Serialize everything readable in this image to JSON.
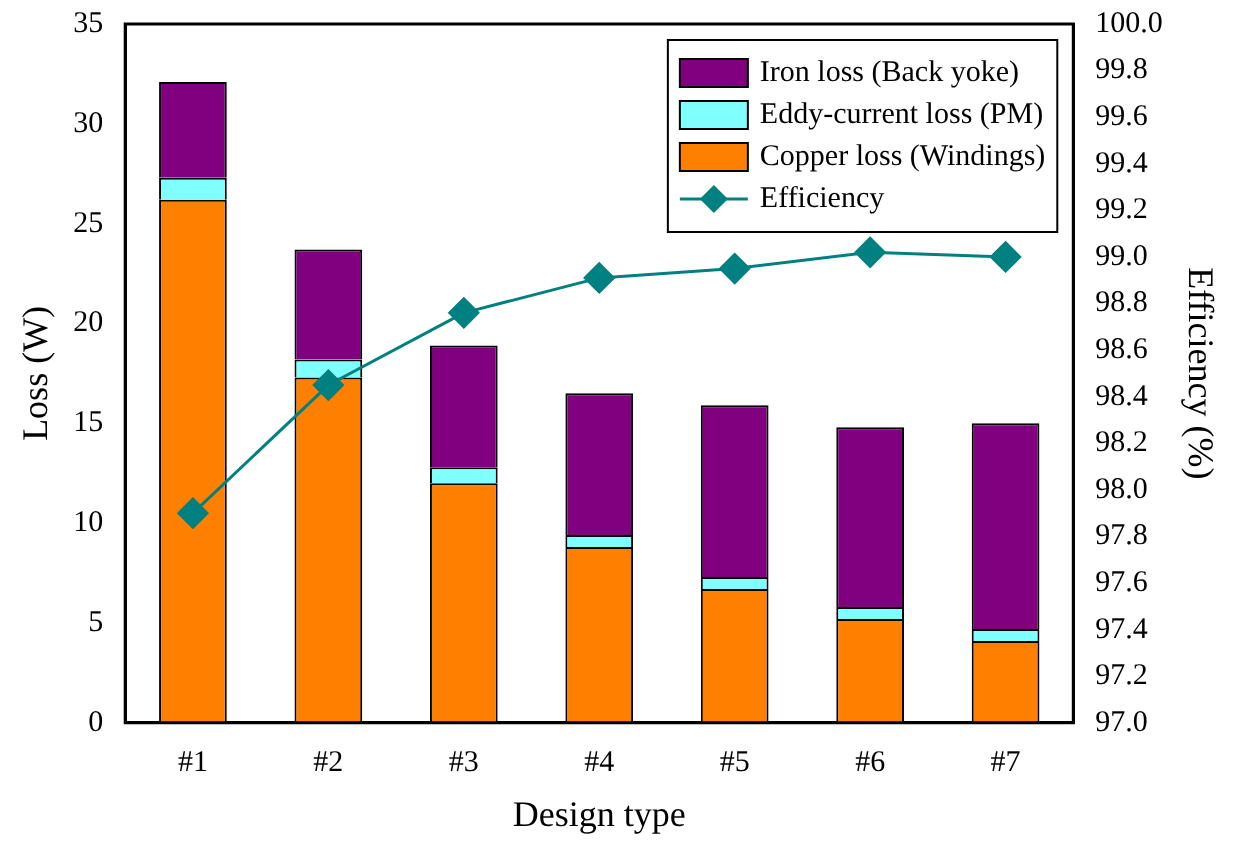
{
  "chart_data": {
    "type": "bar",
    "xlabel": "Design type",
    "ylabel": "Loss (W)",
    "y2label": "Efficiency (%)",
    "categories": [
      "#1",
      "#2",
      "#3",
      "#4",
      "#5",
      "#6",
      "#7"
    ],
    "stacked": true,
    "series": [
      {
        "name": "Copper loss (Windings)",
        "color": "#ff8000",
        "values": [
          26.2,
          17.3,
          12.0,
          8.8,
          6.7,
          5.2,
          4.1
        ]
      },
      {
        "name": "Eddy-current loss (PM)",
        "color": "#80ffff",
        "values": [
          1.1,
          0.9,
          0.8,
          0.6,
          0.6,
          0.6,
          0.6
        ]
      },
      {
        "name": "Iron loss (Back yoke)",
        "color": "#800080",
        "values": [
          4.8,
          5.5,
          6.1,
          7.1,
          8.6,
          9.0,
          10.3
        ]
      },
      {
        "name": "Efficiency",
        "type": "line",
        "axis": "y2",
        "color": "#008080",
        "marker": "diamond",
        "values": [
          97.9,
          98.45,
          98.76,
          98.91,
          98.95,
          99.02,
          99.0
        ]
      }
    ],
    "ylim": [
      0,
      35
    ],
    "yticks": [
      0,
      5,
      10,
      15,
      20,
      25,
      30,
      35
    ],
    "y2lim": [
      97,
      100
    ],
    "y2ticks": [
      {
        "value": 97,
        "label": "97.0"
      },
      {
        "value": 97.2,
        "label": "97.2"
      },
      {
        "value": 97.4,
        "label": "97.4"
      },
      {
        "value": 97.6,
        "label": "97.6"
      },
      {
        "value": 97.8,
        "label": "97.8"
      },
      {
        "value": 98,
        "label": "98.0"
      },
      {
        "value": 98.2,
        "label": "98.2"
      },
      {
        "value": 98.4,
        "label": "98.4"
      },
      {
        "value": 98.6,
        "label": "98.6"
      },
      {
        "value": 98.8,
        "label": "98.8"
      },
      {
        "value": 99,
        "label": "99.0"
      },
      {
        "value": 99.2,
        "label": "99.2"
      },
      {
        "value": 99.4,
        "label": "99.4"
      },
      {
        "value": 99.6,
        "label": "99.6"
      },
      {
        "value": 99.8,
        "label": "99.8"
      },
      {
        "value": 100,
        "label": "100.0"
      }
    ],
    "legend": "top right",
    "grid": false
  }
}
